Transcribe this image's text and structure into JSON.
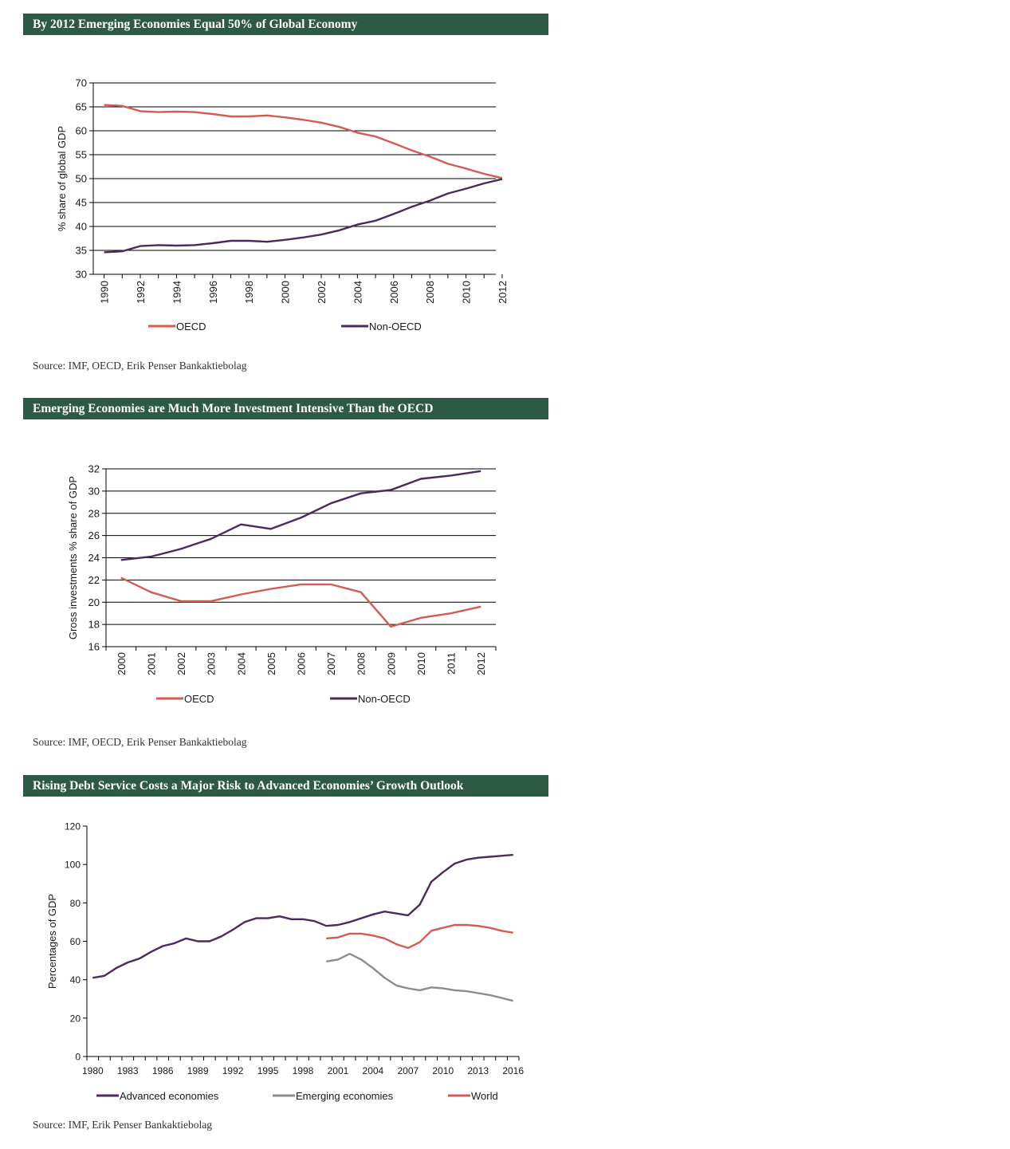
{
  "chart_data": [
    {
      "type": "line",
      "title": "By 2012 Emerging Economies Equal 50% of Global Economy",
      "ylabel": "% share of global GDP",
      "xlabel": "",
      "ylim": [
        30,
        70
      ],
      "ytick_labels": [
        "30",
        "35",
        "40",
        "45",
        "50",
        "55",
        "60",
        "65",
        "70"
      ],
      "x": [
        1990,
        1991,
        1992,
        1993,
        1994,
        1995,
        1996,
        1997,
        1998,
        1999,
        2000,
        2001,
        2002,
        2003,
        2004,
        2005,
        2006,
        2007,
        2008,
        2009,
        2010,
        2011,
        2012
      ],
      "xtick_labels": [
        "1990",
        "1992",
        "1994",
        "1996",
        "1998",
        "2000",
        "2002",
        "2004",
        "2006",
        "2008",
        "2010",
        "2012"
      ],
      "grid": true,
      "legend": "bottom",
      "series": [
        {
          "name": "OECD",
          "color": "#d35c52",
          "values": [
            65.4,
            65.2,
            64.1,
            63.9,
            64.0,
            63.9,
            63.5,
            63.0,
            63.0,
            63.2,
            62.8,
            62.3,
            61.7,
            60.8,
            59.6,
            58.8,
            57.4,
            55.9,
            54.6,
            53.1,
            52.1,
            51.0,
            50.1
          ]
        },
        {
          "name": "Non-OECD",
          "color": "#4b2a5c",
          "values": [
            34.6,
            34.8,
            35.9,
            36.1,
            36.0,
            36.1,
            36.5,
            37.0,
            37.0,
            36.8,
            37.2,
            37.7,
            38.3,
            39.2,
            40.4,
            41.2,
            42.6,
            44.1,
            45.4,
            46.9,
            47.9,
            49.0,
            49.9
          ]
        }
      ],
      "source": "Source: IMF, OECD, Erik Penser Bankaktiebolag"
    },
    {
      "type": "line",
      "title": "Emerging Economies are Much More Investment Intensive Than the OECD",
      "ylabel": "Gross investments % share of GDP",
      "xlabel": "",
      "ylim": [
        16,
        32
      ],
      "ytick_labels": [
        "16",
        "18",
        "20",
        "22",
        "24",
        "26",
        "28",
        "30",
        "32"
      ],
      "x": [
        2000,
        2001,
        2002,
        2003,
        2004,
        2005,
        2006,
        2007,
        2008,
        2009,
        2010,
        2011,
        2012
      ],
      "xtick_labels": [
        "2000",
        "2001",
        "2002",
        "2003",
        "2004",
        "2005",
        "2006",
        "2007",
        "2008",
        "2009",
        "2010",
        "2011",
        "2012"
      ],
      "grid": true,
      "legend": "bottom",
      "series": [
        {
          "name": "OECD",
          "color": "#d35c52",
          "values": [
            22.2,
            20.9,
            20.1,
            20.1,
            20.7,
            21.2,
            21.6,
            21.6,
            20.9,
            17.8,
            18.6,
            19.0,
            19.6
          ]
        },
        {
          "name": "Non-OECD",
          "color": "#4b2a5c",
          "values": [
            23.8,
            24.1,
            24.8,
            25.7,
            27.0,
            26.6,
            27.6,
            28.9,
            29.8,
            30.1,
            31.1,
            31.4,
            31.8
          ]
        }
      ],
      "source": "Source: IMF, OECD, Erik Penser Bankaktiebolag"
    },
    {
      "type": "line",
      "title": "Rising Debt Service Costs a Major Risk to Advanced Economies’ Growth Outlook",
      "ylabel": "Percentages of GDP",
      "xlabel": "",
      "ylim": [
        0,
        120
      ],
      "ytick_labels": [
        "0",
        "20",
        "40",
        "60",
        "80",
        "100",
        "120"
      ],
      "x": [
        1980,
        1981,
        1982,
        1983,
        1984,
        1985,
        1986,
        1987,
        1988,
        1989,
        1990,
        1991,
        1992,
        1993,
        1994,
        1995,
        1996,
        1997,
        1998,
        1999,
        2000,
        2001,
        2002,
        2003,
        2004,
        2005,
        2006,
        2007,
        2008,
        2009,
        2010,
        2011,
        2012,
        2013,
        2014,
        2015,
        2016
      ],
      "xtick_labels": [
        "1980",
        "1983",
        "1986",
        "1989",
        "1992",
        "1995",
        "1998",
        "2001",
        "2004",
        "2007",
        "2010",
        "2013",
        "2016"
      ],
      "grid": false,
      "legend": "bottom",
      "series": [
        {
          "name": "Advanced economies",
          "color": "#4b2a5c",
          "values": [
            41,
            42,
            46,
            49,
            51,
            54.5,
            57.5,
            59,
            61.5,
            60,
            60,
            62.5,
            66,
            70,
            72,
            72,
            73,
            71.5,
            71.5,
            70.5,
            68,
            68.5,
            70,
            72,
            74,
            75.5,
            74.5,
            73.5,
            79,
            91,
            96,
            100.5,
            102.5,
            103.5,
            104,
            104.5,
            105
          ]
        },
        {
          "name": "Emerging economies",
          "color": "#8c8c8c",
          "values": [
            null,
            null,
            null,
            null,
            null,
            null,
            null,
            null,
            null,
            null,
            null,
            null,
            null,
            null,
            null,
            null,
            null,
            null,
            null,
            null,
            49.5,
            50.5,
            53.5,
            50.5,
            46,
            41,
            37,
            35.5,
            34.5,
            36,
            35.5,
            34.5,
            34,
            33,
            32,
            30.5,
            29
          ]
        },
        {
          "name": "World",
          "color": "#d35c52",
          "values": [
            null,
            null,
            null,
            null,
            null,
            null,
            null,
            null,
            null,
            null,
            null,
            null,
            null,
            null,
            null,
            null,
            null,
            null,
            null,
            null,
            61.5,
            62,
            64,
            64,
            63,
            61.5,
            58.5,
            56.5,
            59.5,
            65.5,
            67,
            68.5,
            68.5,
            68,
            67,
            65.5,
            64.5
          ]
        }
      ],
      "source": "Source: IMF, Erik Penser Bankaktiebolag"
    }
  ]
}
